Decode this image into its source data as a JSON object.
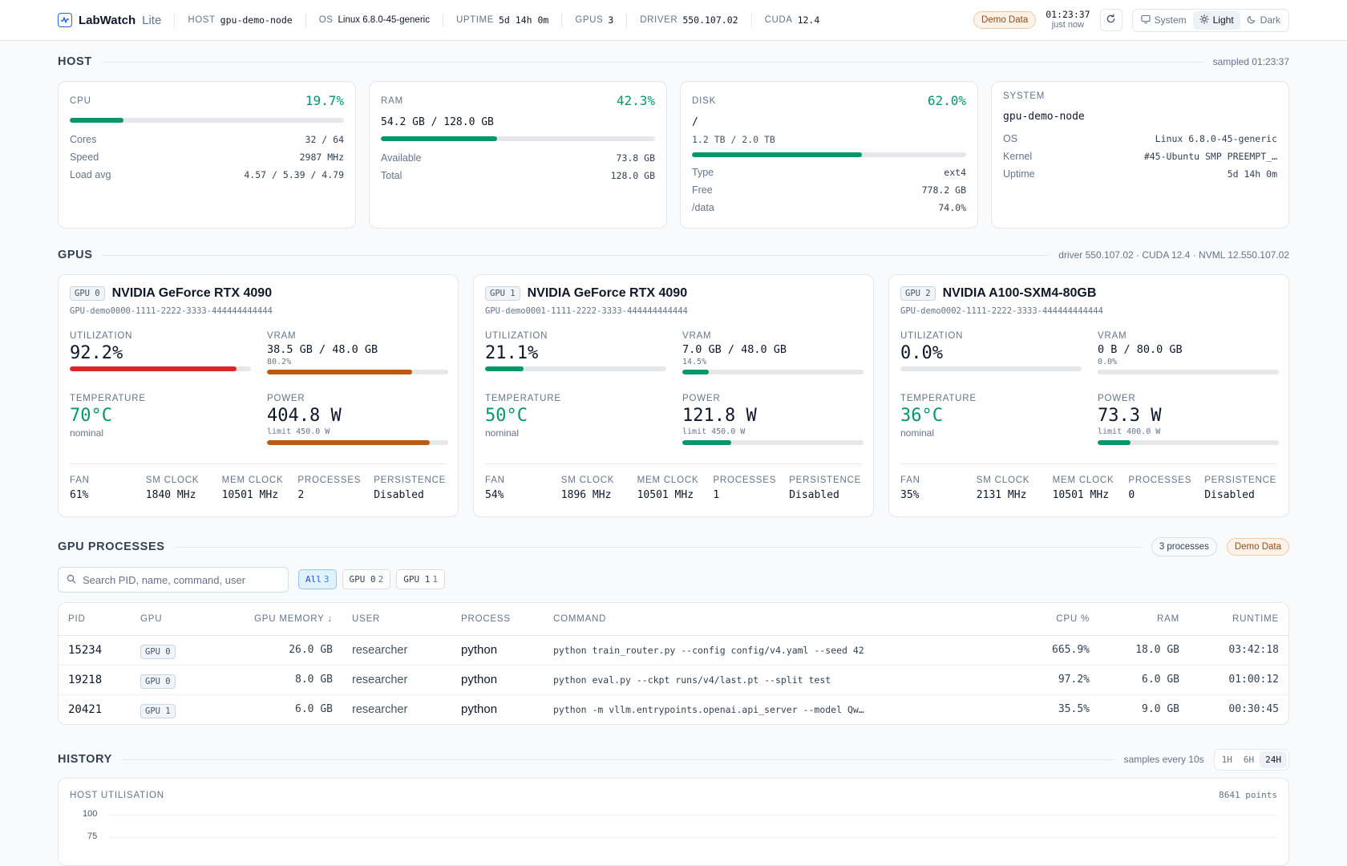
{
  "app": {
    "name": "LabWatch",
    "edition": "Lite"
  },
  "meta": [
    {
      "label": "HOST",
      "value": "gpu-demo-node",
      "mono": true
    },
    {
      "label": "OS",
      "value": "Linux 6.8.0-45-generic",
      "mono": false
    },
    {
      "label": "UPTIME",
      "value": "5d 14h 0m",
      "mono": true
    },
    {
      "label": "GPUS",
      "value": "3",
      "mono": true
    },
    {
      "label": "DRIVER",
      "value": "550.107.02",
      "mono": true
    },
    {
      "label": "CUDA",
      "value": "12.4",
      "mono": true
    }
  ],
  "topbar": {
    "demo_badge": "Demo Data",
    "clock_time": "01:23:37",
    "clock_sub": "just now",
    "theme": {
      "system": "System",
      "light": "Light",
      "dark": "Dark",
      "active": "light"
    }
  },
  "host": {
    "title": "HOST",
    "note": "sampled 01:23:37",
    "cpu": {
      "label": "CPU",
      "pct": "19.7%",
      "fill": 0.197,
      "rows": [
        {
          "k": "Cores",
          "v": "32 / 64"
        },
        {
          "k": "Speed",
          "v": "2987 MHz"
        },
        {
          "k": "Load avg",
          "v": "4.57 / 5.39 / 4.79"
        }
      ]
    },
    "ram": {
      "label": "RAM",
      "pct": "42.3%",
      "fill": 0.423,
      "used": "54.2 GB / 128.0 GB",
      "rows": [
        {
          "k": "Available",
          "v": "73.8 GB"
        },
        {
          "k": "Total",
          "v": "128.0 GB"
        }
      ]
    },
    "disk": {
      "label": "DISK",
      "pct": "62.0%",
      "fill": 0.62,
      "mount": "/",
      "used": "1.2 TB / 2.0 TB",
      "rows": [
        {
          "k": "Type",
          "v": "ext4"
        },
        {
          "k": "Free",
          "v": "778.2 GB"
        },
        {
          "k": "/data",
          "v": "74.0%"
        }
      ]
    },
    "system": {
      "label": "SYSTEM",
      "hostname": "gpu-demo-node",
      "rows": [
        {
          "k": "OS",
          "v": "Linux 6.8.0-45-generic"
        },
        {
          "k": "Kernel",
          "v": "#45-Ubuntu SMP PREEMPT_…"
        },
        {
          "k": "Uptime",
          "v": "5d 14h 0m"
        }
      ]
    }
  },
  "gpus_section": {
    "title": "GPUS",
    "note": "driver 550.107.02 · CUDA 12.4 · NVML 12.550.107.02"
  },
  "gpu_labels": {
    "utilization": "UTILIZATION",
    "vram": "VRAM",
    "temperature": "TEMPERATURE",
    "power": "POWER",
    "fan": "FAN",
    "sm_clock": "SM CLOCK",
    "mem_clock": "MEM CLOCK",
    "processes": "PROCESSES",
    "persistence": "PERSISTENCE"
  },
  "gpus": [
    {
      "tag": "GPU 0",
      "name": "NVIDIA GeForce RTX 4090",
      "uuid": "GPU-demo0000-1111-2222-3333-444444444444",
      "util": "92.2%",
      "util_fill": 0.922,
      "util_color": "#dc2626",
      "vram": "38.5 GB / 48.0 GB",
      "vram_pct": "80.2%",
      "vram_fill": 0.802,
      "vram_color": "#c2570c",
      "temp": "70°C",
      "temp_status": "nominal",
      "power": "404.8 W",
      "power_limit": "limit 450.0 W",
      "power_fill": 0.9,
      "power_color": "#c2570c",
      "fan": "61%",
      "sm_clock": "1840 MHz",
      "mem_clock": "10501 MHz",
      "processes": "2",
      "persistence": "Disabled"
    },
    {
      "tag": "GPU 1",
      "name": "NVIDIA GeForce RTX 4090",
      "uuid": "GPU-demo0001-1111-2222-3333-444444444444",
      "util": "21.1%",
      "util_fill": 0.211,
      "util_color": "#059669",
      "vram": "7.0 GB / 48.0 GB",
      "vram_pct": "14.5%",
      "vram_fill": 0.145,
      "vram_color": "#059669",
      "temp": "50°C",
      "temp_status": "nominal",
      "power": "121.8 W",
      "power_limit": "limit 450.0 W",
      "power_fill": 0.271,
      "power_color": "#059669",
      "fan": "54%",
      "sm_clock": "1896 MHz",
      "mem_clock": "10501 MHz",
      "processes": "1",
      "persistence": "Disabled"
    },
    {
      "tag": "GPU 2",
      "name": "NVIDIA A100-SXM4-80GB",
      "uuid": "GPU-demo0002-1111-2222-3333-444444444444",
      "util": "0.0%",
      "util_fill": 0.0,
      "util_color": "#059669",
      "vram": "0 B / 80.0 GB",
      "vram_pct": "0.0%",
      "vram_fill": 0.0,
      "vram_color": "#059669",
      "temp": "36°C",
      "temp_status": "nominal",
      "power": "73.3 W",
      "power_limit": "limit 400.0 W",
      "power_fill": 0.183,
      "power_color": "#059669",
      "fan": "35%",
      "sm_clock": "2131 MHz",
      "mem_clock": "10501 MHz",
      "processes": "0",
      "persistence": "Disabled"
    }
  ],
  "processes": {
    "title": "GPU PROCESSES",
    "count": "3 processes",
    "demo_badge": "Demo Data",
    "search_placeholder": "Search PID, name, command, user",
    "filters": [
      {
        "label": "All",
        "count": "3",
        "active": true
      },
      {
        "label": "GPU 0",
        "count": "2",
        "active": false
      },
      {
        "label": "GPU 1",
        "count": "1",
        "active": false
      }
    ],
    "columns": {
      "pid": "PID",
      "gpu": "GPU",
      "gpu_memory": "GPU MEMORY ↓",
      "user": "USER",
      "process": "PROCESS",
      "command": "COMMAND",
      "cpu": "CPU %",
      "ram": "RAM",
      "runtime": "RUNTIME"
    },
    "rows": [
      {
        "pid": "15234",
        "gpu": "GPU 0",
        "mem": "26.0 GB",
        "user": "researcher",
        "process": "python",
        "command": "python train_router.py --config config/v4.yaml --seed 42",
        "cpu": "665.9%",
        "ram": "18.0 GB",
        "runtime": "03:42:18"
      },
      {
        "pid": "19218",
        "gpu": "GPU 0",
        "mem": "8.0 GB",
        "user": "researcher",
        "process": "python",
        "command": "python eval.py --ckpt runs/v4/last.pt --split test",
        "cpu": "97.2%",
        "ram": "6.0 GB",
        "runtime": "01:00:12"
      },
      {
        "pid": "20421",
        "gpu": "GPU 1",
        "mem": "6.0 GB",
        "user": "researcher",
        "process": "python",
        "command": "python -m vllm.entrypoints.openai.api_server --model Qw…",
        "cpu": "35.5%",
        "ram": "9.0 GB",
        "runtime": "00:30:45"
      }
    ]
  },
  "history": {
    "title": "HISTORY",
    "note": "samples every 10s",
    "ranges": [
      {
        "label": "1H",
        "active": false
      },
      {
        "label": "6H",
        "active": false
      },
      {
        "label": "24H",
        "active": true
      }
    ],
    "chart_title": "HOST UTILISATION",
    "points": "8641 points",
    "y_ticks": [
      "100",
      "75"
    ]
  },
  "colors": {
    "accent_green": "#059669",
    "accent_blue": "#2563eb",
    "warn_orange": "#c2570c",
    "danger_red": "#dc2626"
  }
}
